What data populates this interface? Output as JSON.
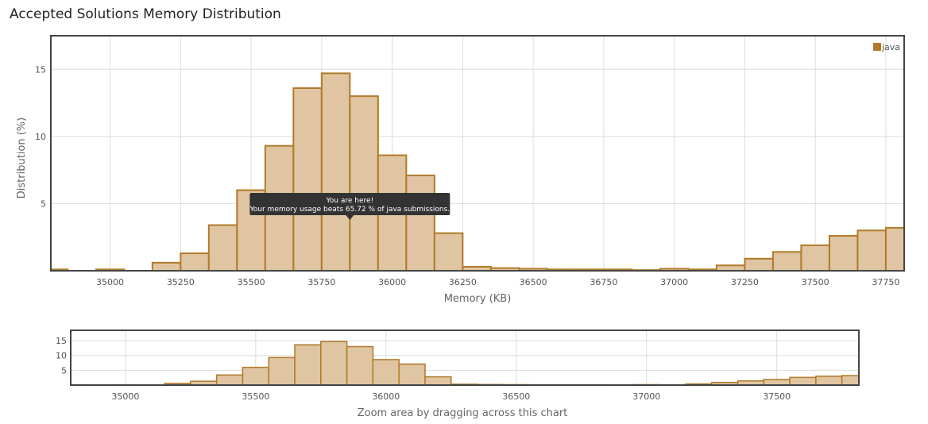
{
  "page": {
    "title": "Accepted Solutions Memory Distribution"
  },
  "colors": {
    "bar_fill": "#dfc5a1",
    "bar_stroke": "#b07a2a",
    "grid": "#dddddd",
    "frame": "#444444",
    "tooltip_bg": "#333333"
  },
  "chart_data": [
    {
      "type": "bar",
      "role": "main",
      "xlabel": "Memory (KB)",
      "ylabel": "Distribution (%)",
      "xlim": [
        34790,
        37815
      ],
      "ylim": [
        0,
        17.5
      ],
      "xticks": [
        35000,
        35250,
        35500,
        35750,
        36000,
        36250,
        36500,
        36750,
        37000,
        37250,
        37500,
        37750
      ],
      "yticks": [
        5,
        10,
        15
      ],
      "grid": true,
      "legend": {
        "position": "top-right",
        "entries": [
          "java"
        ]
      },
      "bin_width": 100,
      "bins": [
        34800,
        34900,
        35000,
        35100,
        35200,
        35300,
        35400,
        35500,
        35600,
        35700,
        35800,
        35900,
        36000,
        36100,
        36200,
        36300,
        36400,
        36500,
        36600,
        36700,
        36800,
        36900,
        37000,
        37100,
        37200,
        37300,
        37400,
        37500,
        37600,
        37700,
        37800
      ],
      "series": [
        {
          "name": "java",
          "values": [
            0.1,
            0,
            0.1,
            0,
            0.6,
            1.3,
            3.4,
            6.0,
            9.3,
            13.6,
            14.7,
            13.0,
            8.6,
            7.1,
            2.8,
            0.3,
            0.2,
            0.15,
            0.1,
            0.1,
            0.1,
            0.05,
            0.15,
            0.1,
            0.4,
            0.9,
            1.4,
            1.9,
            2.6,
            3.0,
            3.2
          ]
        }
      ],
      "annotation": {
        "x": 35850,
        "line1": "You are here!",
        "line2": "Your memory usage beats 65.72 % of java submissions."
      }
    },
    {
      "type": "bar",
      "role": "navigator",
      "xlabel": "Zoom area by dragging across this chart",
      "xlim": [
        34790,
        37815
      ],
      "ylim": [
        0,
        18.5
      ],
      "xticks": [
        35000,
        35500,
        36000,
        36500,
        37000,
        37500
      ],
      "yticks": [
        5,
        10,
        15
      ],
      "grid": true
    }
  ]
}
